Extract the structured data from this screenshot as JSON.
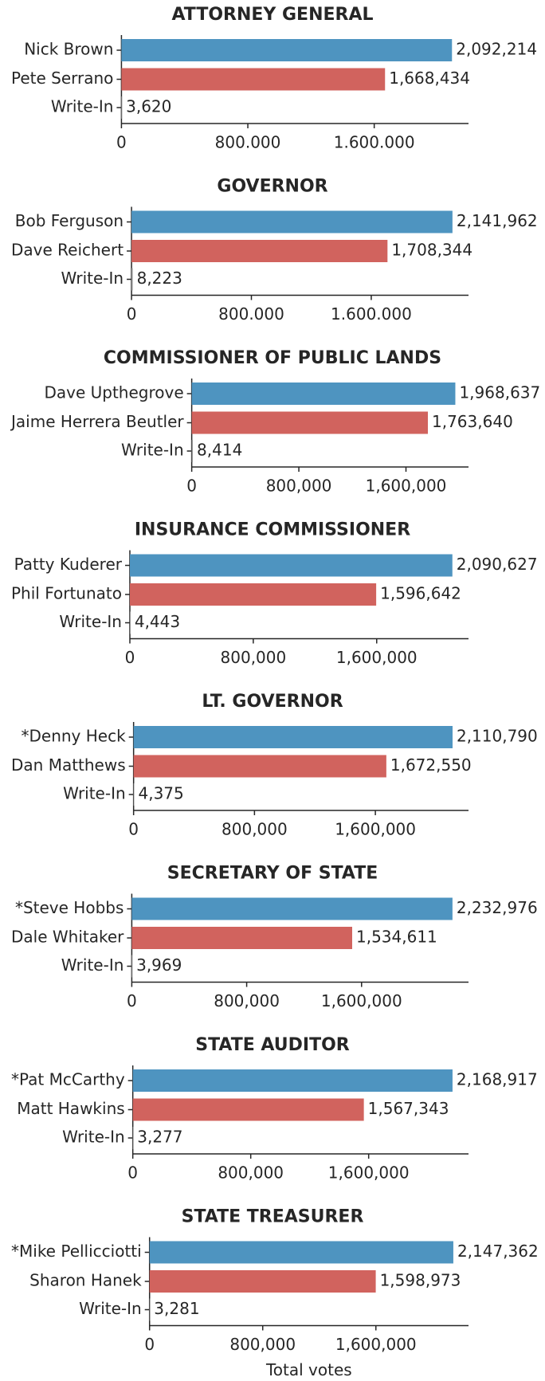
{
  "chart_data": [
    {
      "type": "bar",
      "orientation": "horizontal",
      "title": "ATTORNEY GENERAL",
      "categories": [
        "Nick Brown",
        "Pete Serrano",
        "Write-In"
      ],
      "values": [
        2092214,
        1668434,
        3620
      ],
      "value_labels": [
        "2,092,214",
        "1,668,434",
        "3,620"
      ],
      "colors": [
        "#4e94c0",
        "#d1635e",
        "#999999"
      ],
      "xlim": [
        0,
        2196825
      ],
      "xticks": [
        0,
        {
          "value": 800000,
          "label": "800.000"
        },
        {
          "value": 1600000,
          "label": "1.600.000"
        }
      ]
    },
    {
      "type": "bar",
      "orientation": "horizontal",
      "title": "GOVERNOR",
      "categories": [
        "Bob Ferguson",
        "Dave Reichert",
        "Write-In"
      ],
      "values": [
        2141962,
        1708344,
        8223
      ],
      "value_labels": [
        "2,141,962",
        "1,708,344",
        "8,223"
      ],
      "colors": [
        "#4e94c0",
        "#d1635e",
        "#999999"
      ],
      "xlim": [
        0,
        2249060
      ],
      "xticks": [
        0,
        {
          "value": 800000,
          "label": "800.000"
        },
        {
          "value": 1600000,
          "label": "1.600.000"
        }
      ]
    },
    {
      "type": "bar",
      "orientation": "horizontal",
      "title": "COMMISSIONER OF PUBLIC LANDS",
      "categories": [
        "Dave Upthegrove",
        "Jaime Herrera Beutler",
        "Write-In"
      ],
      "values": [
        1968637,
        1763640,
        8414
      ],
      "value_labels": [
        "1,968,637",
        "1,763,640",
        "8,414"
      ],
      "colors": [
        "#4e94c0",
        "#d1635e",
        "#999999"
      ],
      "xlim": [
        0,
        2067069
      ],
      "xticks": [
        0,
        {
          "value": 800000,
          "label": "800,000"
        },
        {
          "value": 1600000,
          "label": "1,600,000"
        }
      ]
    },
    {
      "type": "bar",
      "orientation": "horizontal",
      "title": "INSURANCE COMMISSIONER",
      "categories": [
        "Patty Kuderer",
        "Phil Fortunato",
        "Write-In"
      ],
      "values": [
        2090627,
        1596642,
        4443
      ],
      "value_labels": [
        "2,090,627",
        "1,596,642",
        "4,443"
      ],
      "colors": [
        "#4e94c0",
        "#d1635e",
        "#999999"
      ],
      "xlim": [
        0,
        2195158
      ],
      "xticks": [
        0,
        {
          "value": 800000,
          "label": "800,000"
        },
        {
          "value": 1600000,
          "label": "1,600,000"
        }
      ]
    },
    {
      "type": "bar",
      "orientation": "horizontal",
      "title": "LT. GOVERNOR",
      "categories": [
        "*Denny Heck",
        "Dan Matthews",
        "Write-In"
      ],
      "values": [
        2110790,
        1672550,
        4375
      ],
      "value_labels": [
        "2,110,790",
        "1,672,550",
        "4,375"
      ],
      "colors": [
        "#4e94c0",
        "#d1635e",
        "#999999"
      ],
      "xlim": [
        0,
        2216330
      ],
      "xticks": [
        0,
        {
          "value": 800000,
          "label": "800,000"
        },
        {
          "value": 1600000,
          "label": "1,600,000"
        }
      ]
    },
    {
      "type": "bar",
      "orientation": "horizontal",
      "title": "SECRETARY OF STATE",
      "categories": [
        "*Steve Hobbs",
        "Dale Whitaker",
        "Write-In"
      ],
      "values": [
        2232976,
        1534611,
        3969
      ],
      "value_labels": [
        "2,232,976",
        "1,534,611",
        "3,969"
      ],
      "colors": [
        "#4e94c0",
        "#d1635e",
        "#999999"
      ],
      "xlim": [
        0,
        2344625
      ],
      "xticks": [
        0,
        {
          "value": 800000,
          "label": "800,000"
        },
        {
          "value": 1600000,
          "label": "1,600,000"
        }
      ]
    },
    {
      "type": "bar",
      "orientation": "horizontal",
      "title": "STATE AUDITOR",
      "categories": [
        "*Pat McCarthy",
        "Matt Hawkins",
        "Write-In"
      ],
      "values": [
        2168917,
        1567343,
        3277
      ],
      "value_labels": [
        "2,168,917",
        "1,567,343",
        "3,277"
      ],
      "colors": [
        "#4e94c0",
        "#d1635e",
        "#999999"
      ],
      "xlim": [
        0,
        2277363
      ],
      "xticks": [
        0,
        {
          "value": 800000,
          "label": "800,000"
        },
        {
          "value": 1600000,
          "label": "1,600,000"
        }
      ]
    },
    {
      "type": "bar",
      "orientation": "horizontal",
      "title": "STATE TREASURER",
      "categories": [
        "*Mike Pellicciotti",
        "Sharon Hanek",
        "Write-In"
      ],
      "values": [
        2147362,
        1598973,
        3281
      ],
      "value_labels": [
        "2,147,362",
        "1,598,973",
        "3,281"
      ],
      "colors": [
        "#4e94c0",
        "#d1635e",
        "#999999"
      ],
      "xlim": [
        0,
        2254730
      ],
      "xticks": [
        0,
        {
          "value": 800000,
          "label": "800,000"
        },
        {
          "value": 1600000,
          "label": "1,600,000"
        }
      ],
      "xlabel": "Total votes"
    }
  ]
}
